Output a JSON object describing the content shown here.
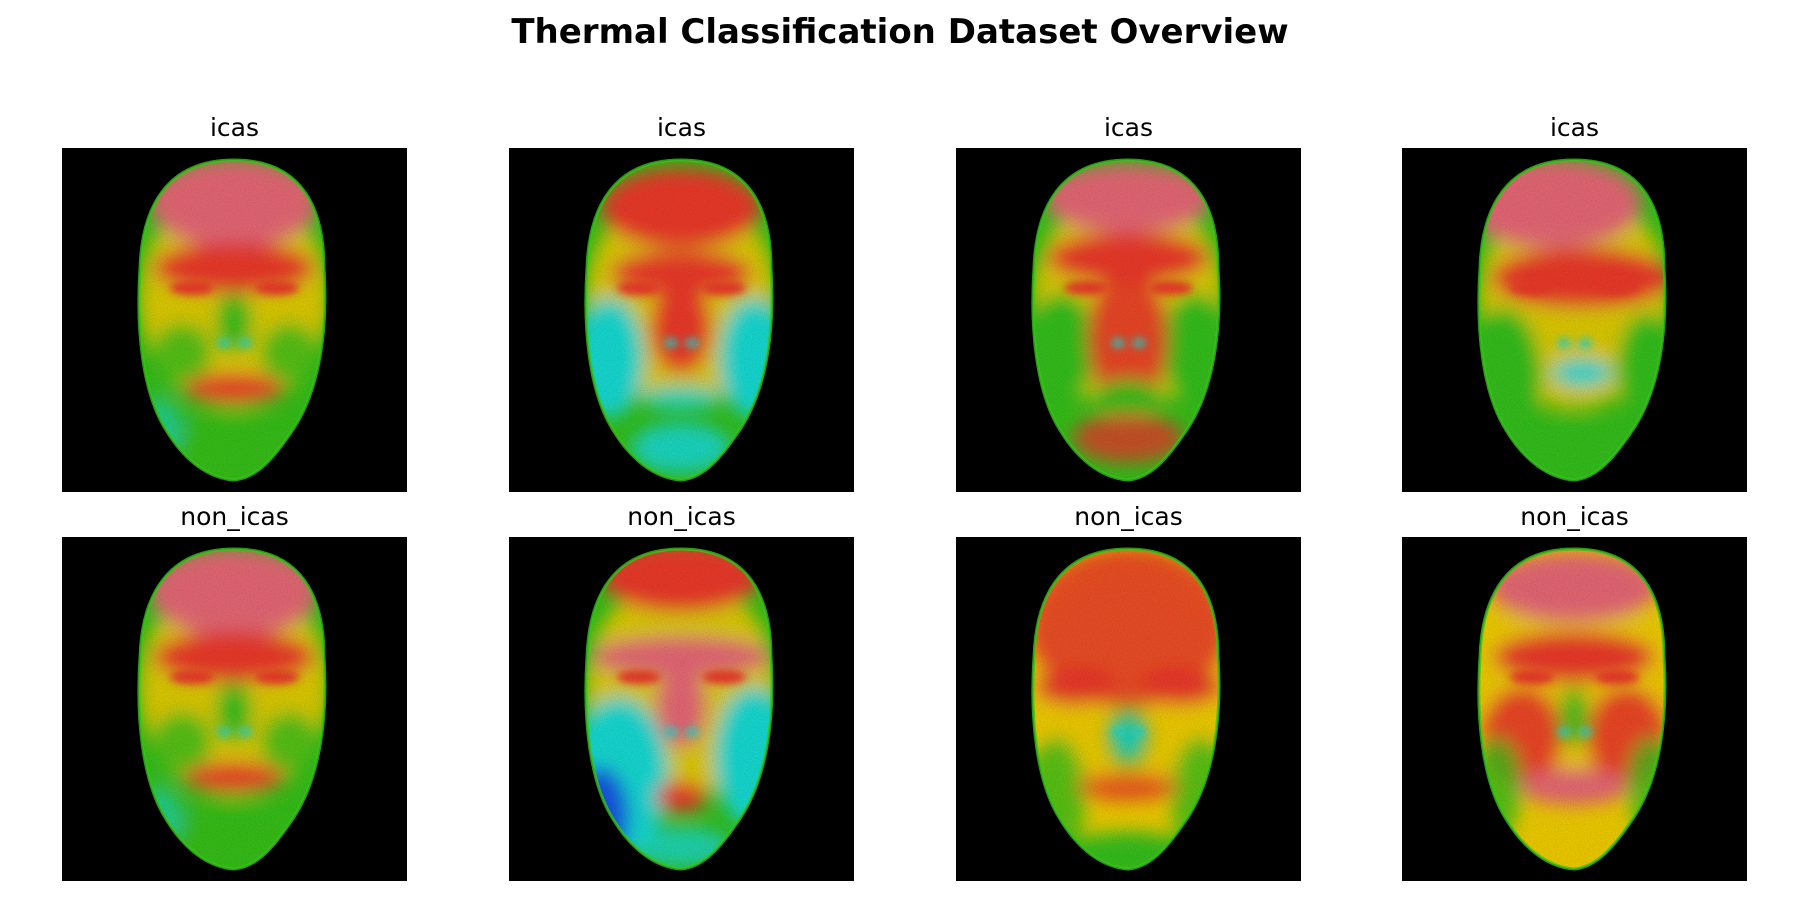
{
  "figure": {
    "title": "Thermal Classification Dataset Overview"
  },
  "panels": [
    {
      "label": "icas",
      "variant": "warm"
    },
    {
      "label": "icas",
      "variant": "cool"
    },
    {
      "label": "icas",
      "variant": "cheeks"
    },
    {
      "label": "icas",
      "variant": "tilted"
    },
    {
      "label": "non_icas",
      "variant": "warm"
    },
    {
      "label": "non_icas",
      "variant": "blue"
    },
    {
      "label": "non_icas",
      "variant": "hot"
    },
    {
      "label": "non_icas",
      "variant": "red"
    }
  ],
  "colors": {
    "background": "#000000",
    "hot": "#f23a2a",
    "hotter": "#ec6a78",
    "warm": "#f6d200",
    "mid": "#36c41a",
    "cool": "#15e0d8",
    "cold": "#1456e8"
  }
}
